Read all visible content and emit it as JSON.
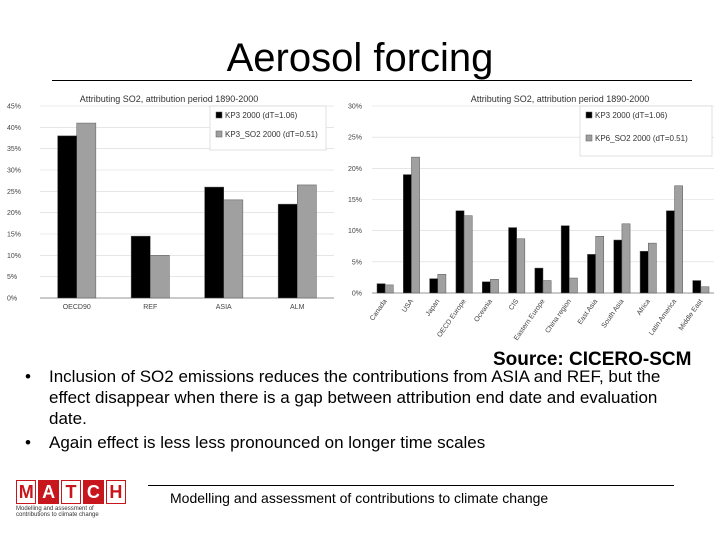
{
  "slide": {
    "title": "Aerosol forcing",
    "source": "Source: CICERO-SCM",
    "bullets": [
      "Inclusion of SO2 emissions reduces the contributions from ASIA and REF, but the effect disappear when there is a gap between attribution end date and evaluation date.",
      "Again effect is less less pronounced on longer time scales"
    ],
    "bullet_symbol": "•",
    "footer": "Modelling and assessment of contributions to climate change",
    "logo": {
      "letters": [
        "M",
        "A",
        "T",
        "C",
        "H"
      ],
      "tagline": "Modelling and assessment of contributions to climate change"
    }
  },
  "chart_data": [
    {
      "type": "bar",
      "title": "Attributing SO2, attribution period 1890-2000",
      "categories": [
        "OECD90",
        "REF",
        "ASIA",
        "ALM"
      ],
      "series": [
        {
          "name": "KP3 2000 (dT=1.06)",
          "color": "#000000",
          "values": [
            38,
            14.5,
            26,
            22
          ]
        },
        {
          "name": "KP3_SO2 2000 (dT=0.51)",
          "color": "#a0a0a0",
          "values": [
            41,
            10,
            23,
            26.5
          ]
        }
      ],
      "yticks": [
        "0%",
        "5%",
        "10%",
        "15%",
        "20%",
        "25%",
        "30%",
        "35%",
        "40%",
        "45%"
      ],
      "ylim": [
        0,
        45
      ],
      "legend_position": "top-right"
    },
    {
      "type": "bar",
      "title": "Attributing SO2, attribution period 1890-2000",
      "categories": [
        "Canada",
        "USA",
        "Japan",
        "OECD Europe",
        "Oceania",
        "CIS",
        "Eastern Europe",
        "China region",
        "East Asia",
        "South Asia",
        "Africa",
        "Latin America",
        "Middle East"
      ],
      "series": [
        {
          "name": "KP3 2000 (dT=1.06)",
          "color": "#000000",
          "values": [
            1.5,
            19,
            2.3,
            13.2,
            1.8,
            10.5,
            4,
            10.8,
            6.2,
            8.5,
            6.7,
            13.2,
            2
          ]
        },
        {
          "name": "KP6_SO2 2000 (dT=0.51)",
          "color": "#a0a0a0",
          "values": [
            1.3,
            21.8,
            3,
            12.4,
            2.2,
            8.7,
            2,
            2.4,
            9.1,
            11.1,
            8,
            17.2,
            1
          ]
        }
      ],
      "yticks": [
        "0%",
        "5%",
        "10%",
        "15%",
        "20%",
        "25%",
        "30%"
      ],
      "ylim": [
        0,
        30
      ],
      "legend_position": "top-right"
    }
  ]
}
